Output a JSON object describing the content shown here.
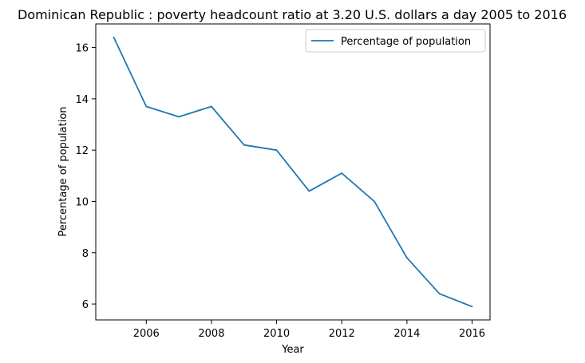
{
  "chart_data": {
    "type": "line",
    "title": "Dominican Republic : poverty headcount ratio at 3.20 U.S. dollars a day 2005 to 2016",
    "xlabel": "Year",
    "ylabel": "Percentage of population",
    "x": [
      2005,
      2006,
      2007,
      2008,
      2009,
      2010,
      2011,
      2012,
      2013,
      2014,
      2015,
      2016
    ],
    "series": [
      {
        "name": "Percentage of population",
        "color": "#1f77b4",
        "values": [
          16.4,
          13.7,
          13.3,
          13.7,
          12.2,
          12.0,
          10.4,
          11.1,
          10.0,
          7.8,
          6.4,
          5.9
        ]
      }
    ],
    "xlim": [
      2004.45,
      2016.55
    ],
    "ylim": [
      5.38,
      16.92
    ],
    "xticks": [
      2006,
      2008,
      2010,
      2012,
      2014,
      2016
    ],
    "yticks": [
      6,
      8,
      10,
      12,
      14,
      16
    ],
    "grid": false,
    "legend_position": "upper right"
  }
}
